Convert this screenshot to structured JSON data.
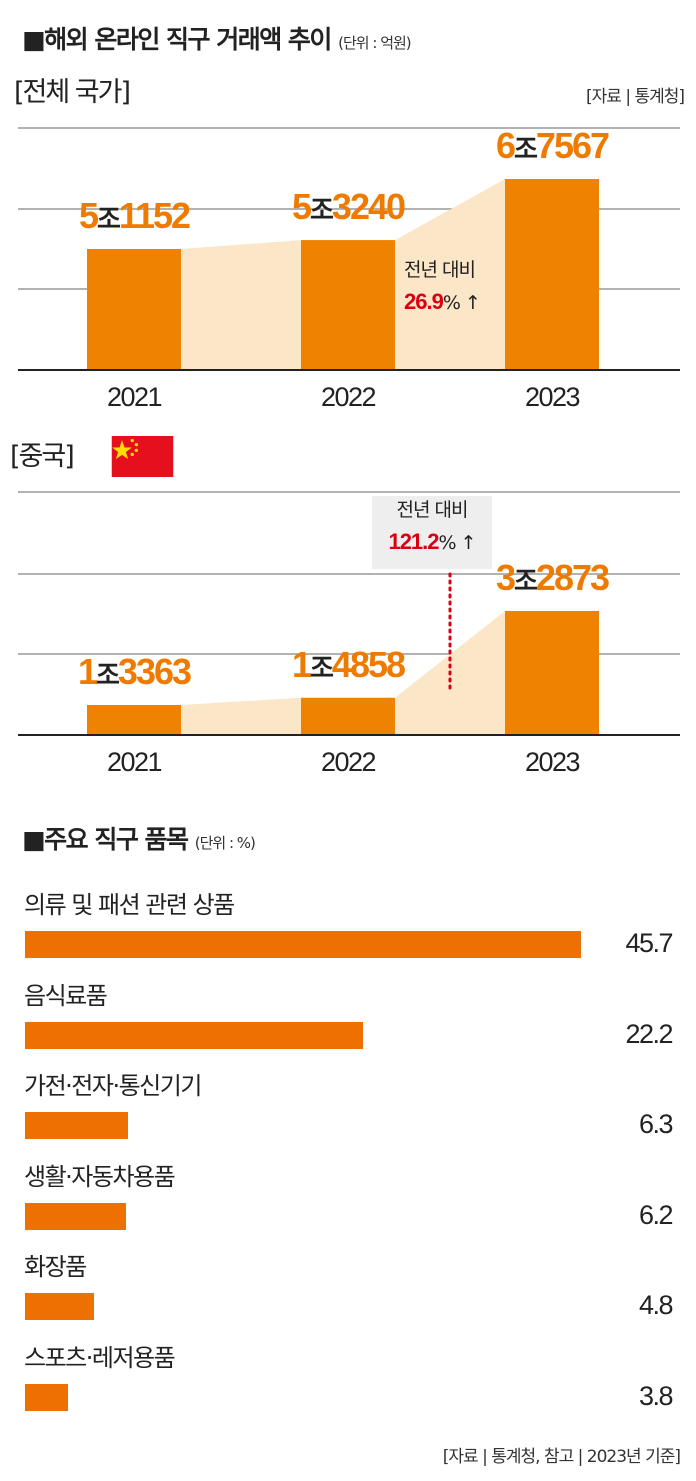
{
  "header": {
    "title": "■해외 온라인 직구 거래액 추이",
    "unit": "(단위 : 억원)"
  },
  "chart_data": [
    {
      "type": "bar",
      "title": "[전체 국가]",
      "source": "[자료 | 통계청]",
      "categories": [
        "2021",
        "2022",
        "2023"
      ],
      "values": [
        51152,
        53240,
        67567
      ],
      "value_labels": [
        {
          "jo": "5",
          "joword": "조",
          "rest": "1152"
        },
        {
          "jo": "5",
          "joword": "조",
          "rest": "3240"
        },
        {
          "jo": "6",
          "joword": "조",
          "rest": "7567"
        }
      ],
      "annotation": {
        "text": "전년 대비",
        "pct": "26.9",
        "pct_unit": "%",
        "arrow": "↑"
      },
      "grid": true,
      "colors": {
        "bar": "#ef8200",
        "area": "#fce6c8"
      }
    },
    {
      "type": "bar",
      "title": "[중국]",
      "flag": "china-flag",
      "categories": [
        "2021",
        "2022",
        "2023"
      ],
      "values": [
        13363,
        14858,
        32873
      ],
      "value_labels": [
        {
          "jo": "1",
          "joword": "조",
          "rest": "3363"
        },
        {
          "jo": "1",
          "joword": "조",
          "rest": "4858"
        },
        {
          "jo": "3",
          "joword": "조",
          "rest": "2873"
        }
      ],
      "annotation": {
        "text": "전년 대비",
        "pct": "121.2",
        "pct_unit": "%",
        "arrow": "↑"
      },
      "grid": true,
      "colors": {
        "bar": "#ef8200",
        "area": "#fce6c8",
        "marker": "#d90012"
      }
    },
    {
      "type": "bar",
      "orientation": "horizontal",
      "title": "■주요 직구 품목",
      "unit": "(단위 : %)",
      "categories": [
        "의류 및 패션 관련 상품",
        "음식료품",
        "가전·전자·통신기기",
        "생활·자동차용품",
        "화장품",
        "스포츠·레저용품"
      ],
      "values": [
        45.7,
        22.2,
        6.3,
        6.2,
        4.8,
        3.8
      ],
      "value_labels": [
        "45.7",
        "22.2",
        "6.3",
        "6.2",
        "4.8",
        "3.8"
      ],
      "colors": {
        "bar": "#ee7000"
      }
    }
  ],
  "footer": {
    "source": "[자료 | 통계청, 참고 | 2023년 기준]"
  }
}
